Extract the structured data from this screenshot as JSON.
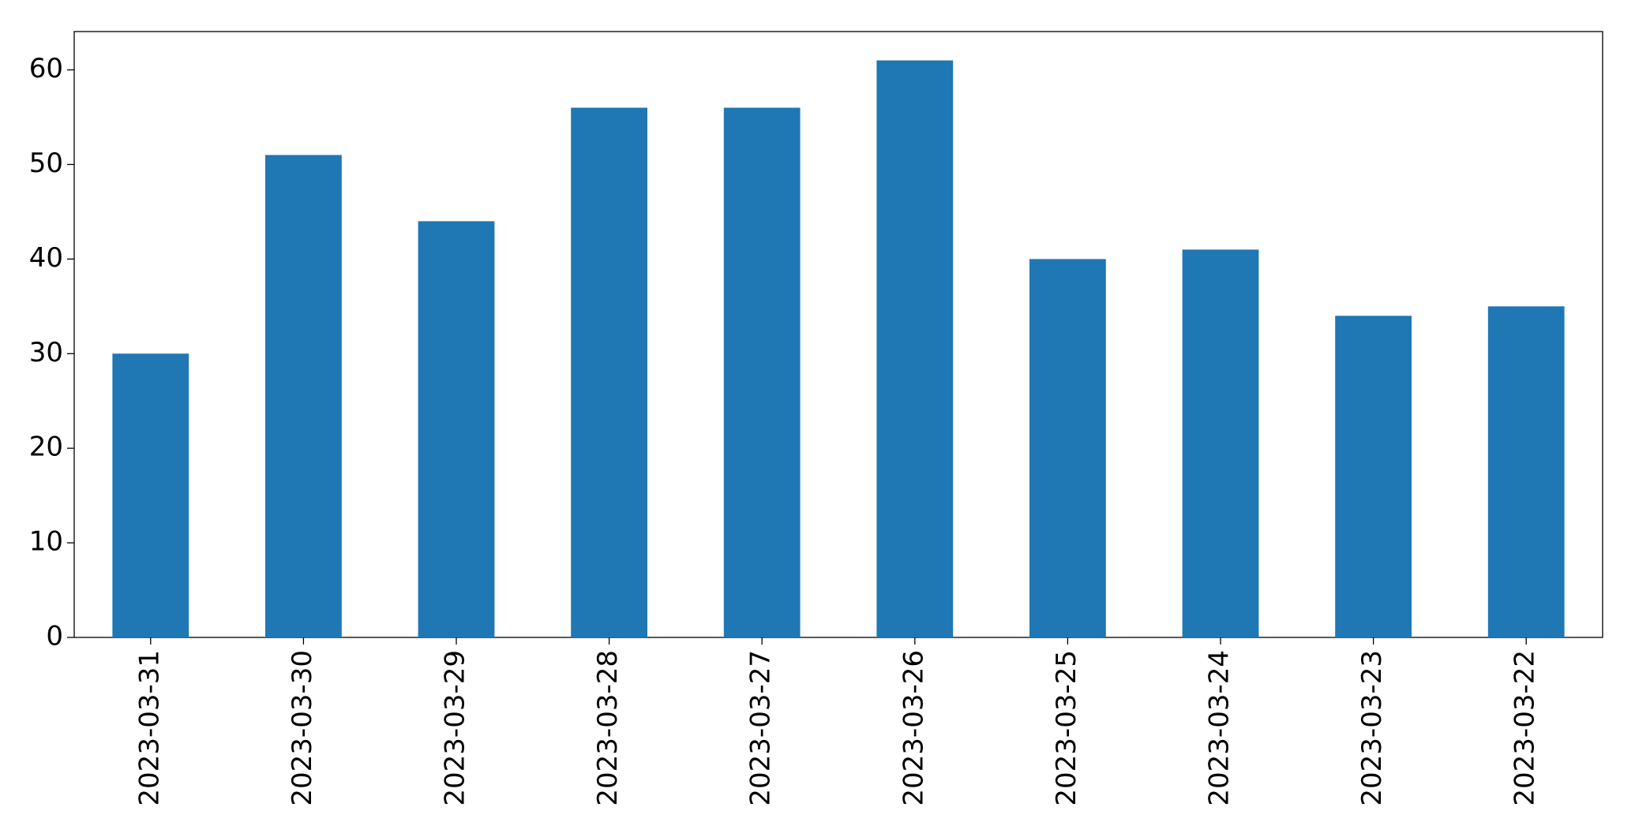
{
  "chart_data": {
    "type": "bar",
    "categories": [
      "2023-03-31",
      "2023-03-30",
      "2023-03-29",
      "2023-03-28",
      "2023-03-27",
      "2023-03-26",
      "2023-03-25",
      "2023-03-24",
      "2023-03-23",
      "2023-03-22"
    ],
    "values": [
      30,
      51,
      44,
      56,
      56,
      61,
      40,
      41,
      34,
      35
    ],
    "color": "#1f77b4",
    "ylim": [
      0,
      64.05
    ],
    "yticks": [
      0,
      10,
      20,
      30,
      40,
      50,
      60
    ],
    "grid": false
  }
}
